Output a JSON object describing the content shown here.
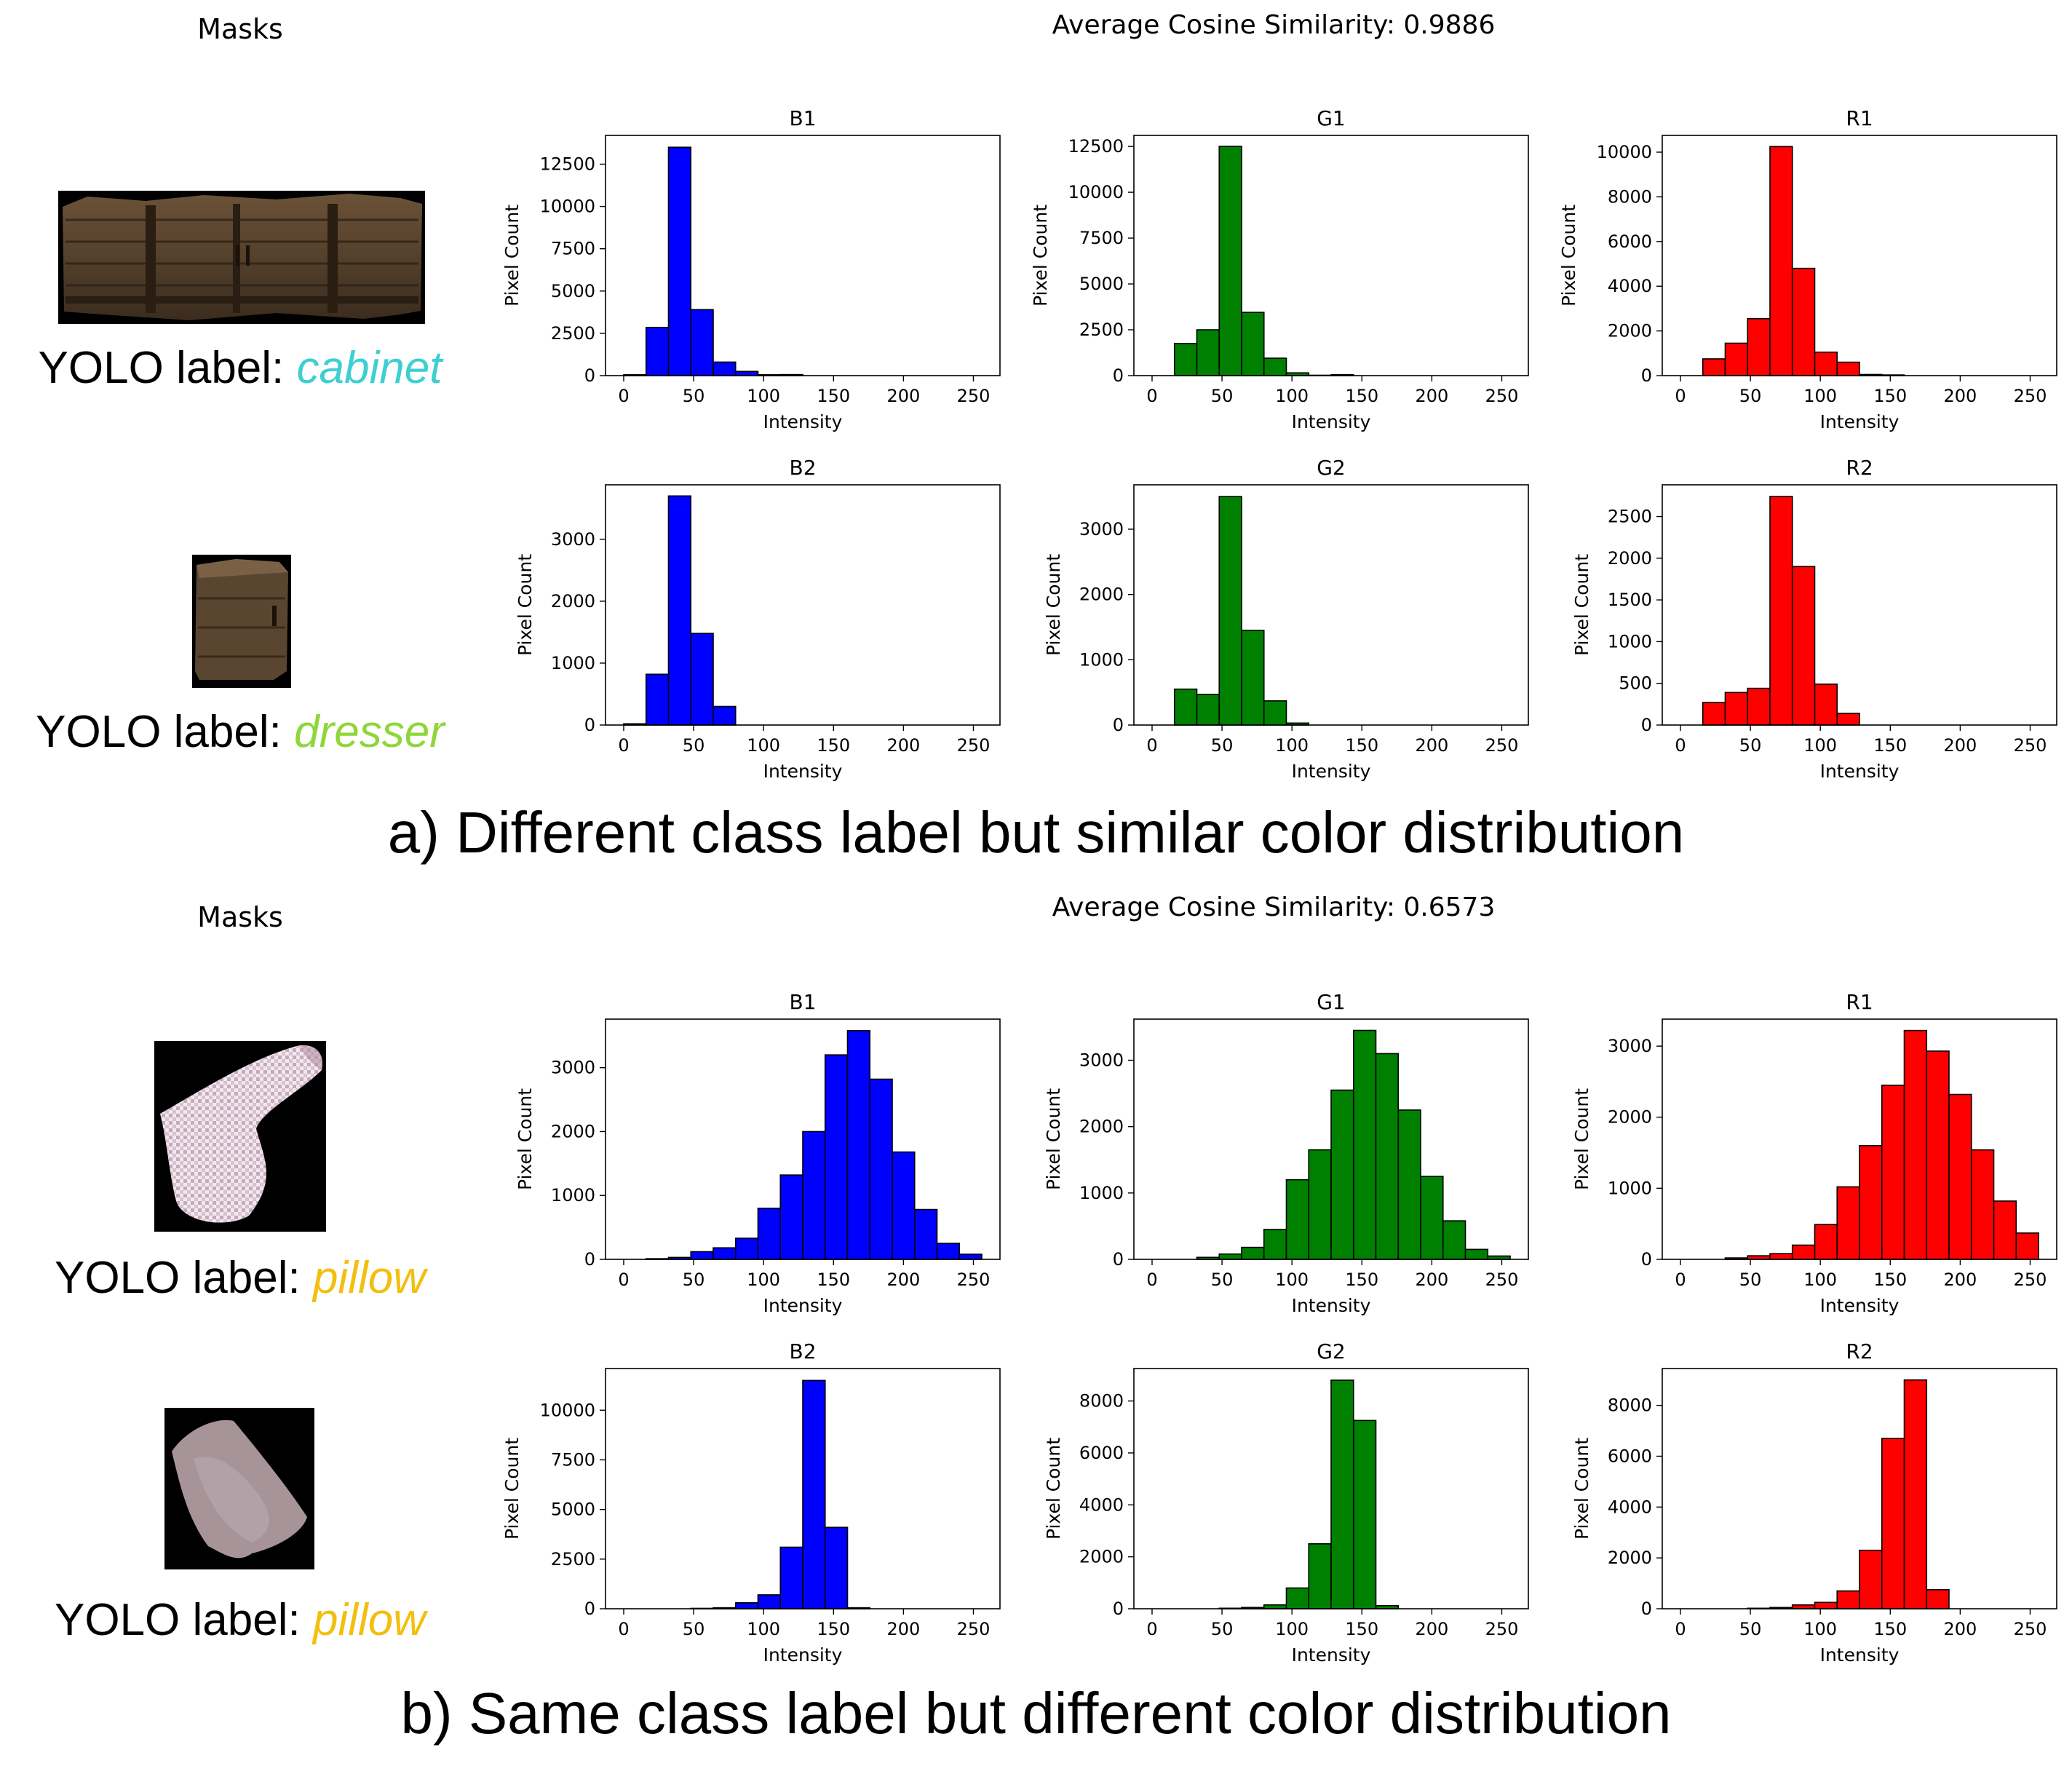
{
  "panels": [
    {
      "masks_title": "Masks",
      "similarity_title": "Average Cosine Similarity: 0.9886",
      "caption": "a) Different class label but similar color distribution",
      "rows": [
        {
          "yolo_prefix": "YOLO label: ",
          "yolo_class": "cabinet",
          "class_color": "#3dcfd1",
          "mask_icon": "cabinet-mask-image"
        },
        {
          "yolo_prefix": "YOLO label: ",
          "yolo_class": "dresser",
          "class_color": "#8ed63a",
          "mask_icon": "dresser-mask-image"
        }
      ]
    },
    {
      "masks_title": "Masks",
      "similarity_title": "Average Cosine Similarity: 0.6573",
      "caption": "b) Same class label but different color distribution",
      "rows": [
        {
          "yolo_prefix": "YOLO label: ",
          "yolo_class": "pillow",
          "class_color": "#f2bf10",
          "mask_icon": "checkered-pillow-mask-image"
        },
        {
          "yolo_prefix": "YOLO label: ",
          "yolo_class": "pillow",
          "class_color": "#f2bf10",
          "mask_icon": "plain-pillow-mask-image"
        }
      ]
    }
  ],
  "chart_data": [
    {
      "type": "bar",
      "panel": 0,
      "row": 0,
      "col": 0,
      "title": "B1",
      "xlabel": "Intensity",
      "ylabel": "Pixel Count",
      "color": "#0000ff",
      "bin_edges": [
        0,
        16,
        32,
        48,
        64,
        80,
        96,
        112,
        128,
        144,
        160,
        176,
        192,
        208,
        224,
        240,
        256
      ],
      "values": [
        50,
        2850,
        13500,
        3900,
        800,
        250,
        50,
        60,
        0,
        0,
        0,
        0,
        0,
        0,
        0,
        0
      ],
      "xticks": [
        0,
        50,
        100,
        150,
        200,
        250
      ],
      "yticks": [
        0,
        2500,
        5000,
        7500,
        10000,
        12500
      ],
      "ylim": [
        0,
        14200
      ]
    },
    {
      "type": "bar",
      "panel": 0,
      "row": 0,
      "col": 1,
      "title": "G1",
      "xlabel": "Intensity",
      "ylabel": "Pixel Count",
      "color": "#008000",
      "bin_edges": [
        0,
        16,
        32,
        48,
        64,
        80,
        96,
        112,
        128,
        144,
        160,
        176,
        192,
        208,
        224,
        240,
        256
      ],
      "values": [
        0,
        1750,
        2500,
        12500,
        3450,
        950,
        150,
        20,
        50,
        0,
        0,
        0,
        0,
        0,
        0,
        0
      ],
      "xticks": [
        0,
        50,
        100,
        150,
        200,
        250
      ],
      "yticks": [
        0,
        2500,
        5000,
        7500,
        10000,
        12500
      ],
      "ylim": [
        0,
        13100
      ]
    },
    {
      "type": "bar",
      "panel": 0,
      "row": 0,
      "col": 2,
      "title": "R1",
      "xlabel": "Intensity",
      "ylabel": "Pixel Count",
      "color": "#ff0000",
      "bin_edges": [
        0,
        16,
        32,
        48,
        64,
        80,
        96,
        112,
        128,
        144,
        160,
        176,
        192,
        208,
        224,
        240,
        256
      ],
      "values": [
        0,
        750,
        1450,
        2550,
        10250,
        4800,
        1050,
        600,
        50,
        30,
        0,
        0,
        0,
        0,
        0,
        0
      ],
      "xticks": [
        0,
        50,
        100,
        150,
        200,
        250
      ],
      "yticks": [
        0,
        2000,
        4000,
        6000,
        8000,
        10000
      ],
      "ylim": [
        0,
        10750
      ]
    },
    {
      "type": "bar",
      "panel": 0,
      "row": 1,
      "col": 0,
      "title": "B2",
      "xlabel": "Intensity",
      "ylabel": "Pixel Count",
      "color": "#0000ff",
      "bin_edges": [
        0,
        16,
        32,
        48,
        64,
        80,
        96,
        112,
        128,
        144,
        160,
        176,
        192,
        208,
        224,
        240,
        256
      ],
      "values": [
        20,
        820,
        3700,
        1480,
        300,
        0,
        0,
        0,
        0,
        0,
        0,
        0,
        0,
        0,
        0,
        0
      ],
      "xticks": [
        0,
        50,
        100,
        150,
        200,
        250
      ],
      "yticks": [
        0,
        1000,
        2000,
        3000
      ],
      "ylim": [
        0,
        3880
      ]
    },
    {
      "type": "bar",
      "panel": 0,
      "row": 1,
      "col": 1,
      "title": "G2",
      "xlabel": "Intensity",
      "ylabel": "Pixel Count",
      "color": "#008000",
      "bin_edges": [
        0,
        16,
        32,
        48,
        64,
        80,
        96,
        112,
        128,
        144,
        160,
        176,
        192,
        208,
        224,
        240,
        256
      ],
      "values": [
        0,
        550,
        470,
        3500,
        1450,
        370,
        30,
        0,
        0,
        0,
        0,
        0,
        0,
        0,
        0,
        0
      ],
      "xticks": [
        0,
        50,
        100,
        150,
        200,
        250
      ],
      "yticks": [
        0,
        1000,
        2000,
        3000
      ],
      "ylim": [
        0,
        3680
      ]
    },
    {
      "type": "bar",
      "panel": 0,
      "row": 1,
      "col": 2,
      "title": "R2",
      "xlabel": "Intensity",
      "ylabel": "Pixel Count",
      "color": "#ff0000",
      "bin_edges": [
        0,
        16,
        32,
        48,
        64,
        80,
        96,
        112,
        128,
        144,
        160,
        176,
        192,
        208,
        224,
        240,
        256
      ],
      "values": [
        0,
        270,
        390,
        440,
        2740,
        1900,
        490,
        140,
        0,
        0,
        0,
        0,
        0,
        0,
        0,
        0
      ],
      "xticks": [
        0,
        50,
        100,
        150,
        200,
        250
      ],
      "yticks": [
        0,
        500,
        1000,
        1500,
        2000,
        2500
      ],
      "ylim": [
        0,
        2880
      ]
    },
    {
      "type": "bar",
      "panel": 1,
      "row": 0,
      "col": 0,
      "title": "B1",
      "xlabel": "Intensity",
      "ylabel": "Pixel Count",
      "color": "#0000ff",
      "bin_edges": [
        0,
        16,
        32,
        48,
        64,
        80,
        96,
        112,
        128,
        144,
        160,
        176,
        192,
        208,
        224,
        240,
        256
      ],
      "values": [
        0,
        10,
        30,
        120,
        180,
        330,
        800,
        1320,
        2000,
        3200,
        3580,
        2820,
        1680,
        780,
        250,
        80
      ],
      "xticks": [
        0,
        50,
        100,
        150,
        200,
        250
      ],
      "yticks": [
        0,
        1000,
        2000,
        3000
      ],
      "ylim": [
        0,
        3760
      ]
    },
    {
      "type": "bar",
      "panel": 1,
      "row": 0,
      "col": 1,
      "title": "G1",
      "xlabel": "Intensity",
      "ylabel": "Pixel Count",
      "color": "#008000",
      "bin_edges": [
        0,
        16,
        32,
        48,
        64,
        80,
        96,
        112,
        128,
        144,
        160,
        176,
        192,
        208,
        224,
        240,
        256
      ],
      "values": [
        0,
        0,
        30,
        80,
        180,
        450,
        1200,
        1650,
        2550,
        3450,
        3100,
        2250,
        1250,
        580,
        150,
        50
      ],
      "xticks": [
        0,
        50,
        100,
        150,
        200,
        250
      ],
      "yticks": [
        0,
        1000,
        2000,
        3000
      ],
      "ylim": [
        0,
        3620
      ]
    },
    {
      "type": "bar",
      "panel": 1,
      "row": 0,
      "col": 2,
      "title": "R1",
      "xlabel": "Intensity",
      "ylabel": "Pixel Count",
      "color": "#ff0000",
      "bin_edges": [
        0,
        16,
        32,
        48,
        64,
        80,
        96,
        112,
        128,
        144,
        160,
        176,
        192,
        208,
        224,
        240,
        256
      ],
      "values": [
        0,
        0,
        20,
        50,
        80,
        200,
        490,
        1020,
        1600,
        2450,
        3220,
        2930,
        2320,
        1540,
        820,
        370
      ],
      "xticks": [
        0,
        50,
        100,
        150,
        200,
        250
      ],
      "yticks": [
        0,
        1000,
        2000,
        3000
      ],
      "ylim": [
        0,
        3380
      ]
    },
    {
      "type": "bar",
      "panel": 1,
      "row": 1,
      "col": 0,
      "title": "B2",
      "xlabel": "Intensity",
      "ylabel": "Pixel Count",
      "color": "#0000ff",
      "bin_edges": [
        0,
        16,
        32,
        48,
        64,
        80,
        96,
        112,
        128,
        144,
        160,
        176,
        192,
        208,
        224,
        240,
        256
      ],
      "values": [
        0,
        0,
        0,
        20,
        50,
        300,
        700,
        3100,
        11500,
        4100,
        50,
        0,
        0,
        0,
        0,
        0
      ],
      "xticks": [
        0,
        50,
        100,
        150,
        200,
        250
      ],
      "yticks": [
        0,
        2500,
        5000,
        7500,
        10000
      ],
      "ylim": [
        0,
        12100
      ]
    },
    {
      "type": "bar",
      "panel": 1,
      "row": 1,
      "col": 1,
      "title": "G2",
      "xlabel": "Intensity",
      "ylabel": "Pixel Count",
      "color": "#008000",
      "bin_edges": [
        0,
        16,
        32,
        48,
        64,
        80,
        96,
        112,
        128,
        144,
        160,
        176,
        192,
        208,
        224,
        240,
        256
      ],
      "values": [
        0,
        0,
        0,
        20,
        50,
        150,
        800,
        2500,
        8800,
        7250,
        120,
        0,
        0,
        0,
        0,
        0
      ],
      "xticks": [
        0,
        50,
        100,
        150,
        200,
        250
      ],
      "yticks": [
        0,
        2000,
        4000,
        6000,
        8000
      ],
      "ylim": [
        0,
        9250
      ]
    },
    {
      "type": "bar",
      "panel": 1,
      "row": 1,
      "col": 2,
      "title": "R2",
      "xlabel": "Intensity",
      "ylabel": "Pixel Count",
      "color": "#ff0000",
      "bin_edges": [
        0,
        16,
        32,
        48,
        64,
        80,
        96,
        112,
        128,
        144,
        160,
        176,
        192,
        208,
        224,
        240,
        256
      ],
      "values": [
        0,
        0,
        0,
        20,
        50,
        150,
        250,
        700,
        2300,
        6700,
        9000,
        750,
        0,
        0,
        0,
        0
      ],
      "xticks": [
        0,
        50,
        100,
        150,
        200,
        250
      ],
      "yticks": [
        0,
        2000,
        4000,
        6000,
        8000
      ],
      "ylim": [
        0,
        9450
      ]
    }
  ]
}
